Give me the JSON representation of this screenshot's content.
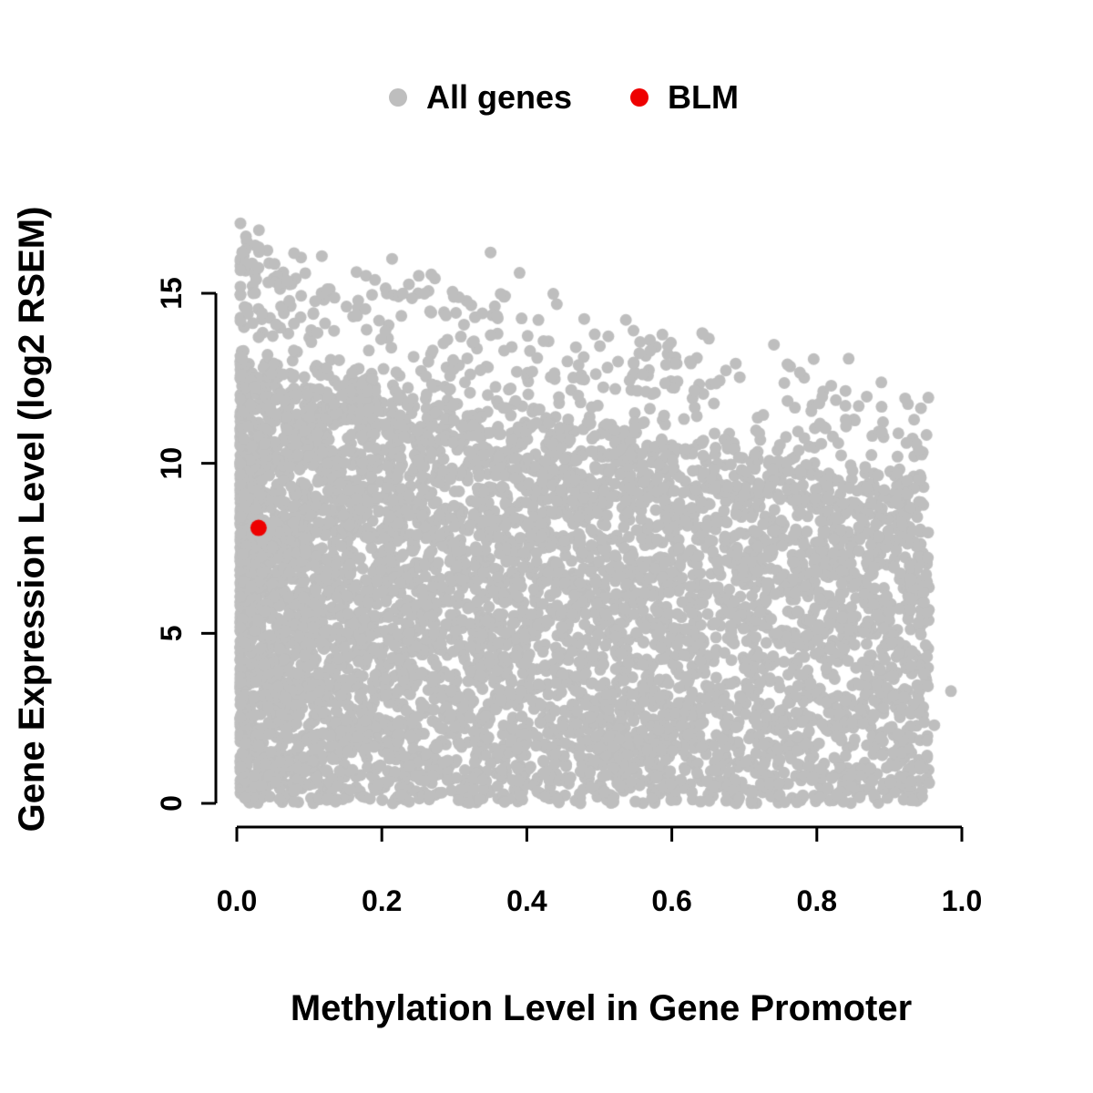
{
  "figure": {
    "background": "#ffffff",
    "point_color_all": "#bebebe",
    "point_color_highlight": "#ee0000"
  },
  "chart_data": {
    "type": "scatter",
    "title": "",
    "xlabel": "Methylation Level in Gene Promoter",
    "ylabel": "Gene Expression Level (log2 RSEM)",
    "xlim": [
      0.0,
      1.0
    ],
    "ylim": [
      0,
      15
    ],
    "x_ticks": [
      "0.0",
      "0.2",
      "0.4",
      "0.6",
      "0.8",
      "1.0"
    ],
    "y_ticks": [
      "0",
      "5",
      "10",
      "15"
    ],
    "grid": false,
    "legend_position": "top-center",
    "legend": [
      {
        "label": "All genes",
        "color": "#bebebe"
      },
      {
        "label": "BLM",
        "color": "#ee0000"
      }
    ],
    "series": [
      {
        "name": "All genes",
        "color": "#bebebe",
        "kind": "dense-cloud",
        "n_points": 6500,
        "x_range": [
          0.005,
          0.955
        ],
        "y_range": [
          0,
          16.7
        ],
        "upper_envelope": {
          "intercept": 16.6,
          "slope": -4.8
        },
        "x_skew": 1.4,
        "solid_fraction": 0.72,
        "solid_height_fraction": 0.78,
        "extra_points": [
          [
            0.985,
            3.3
          ],
          [
            0.962,
            2.3
          ],
          [
            0.955,
            0.6
          ],
          [
            0.35,
            16.2
          ],
          [
            0.39,
            15.6
          ]
        ]
      },
      {
        "name": "BLM",
        "color": "#ee0000",
        "points": [
          [
            0.03,
            8.1
          ]
        ]
      }
    ]
  }
}
